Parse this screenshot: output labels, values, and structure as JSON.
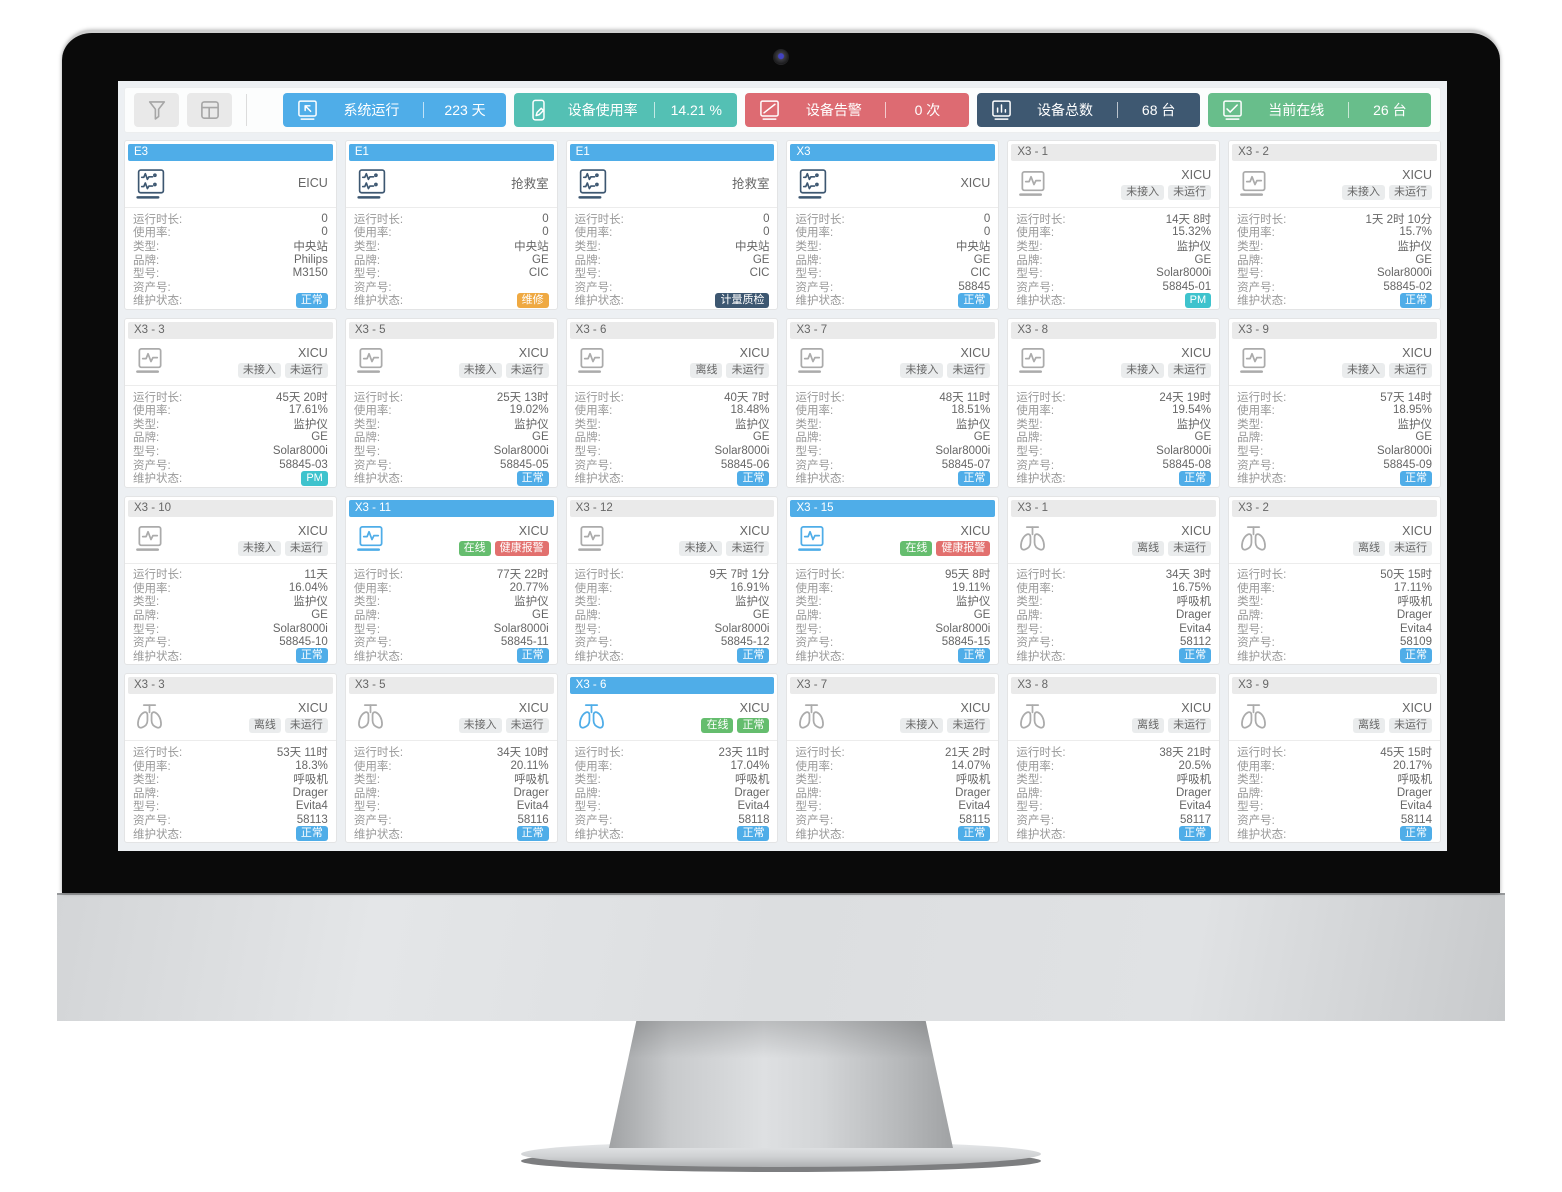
{
  "topbar": {
    "tools": [
      {
        "name": "filter",
        "icon": "funnel-icon"
      },
      {
        "name": "layout",
        "icon": "layout-icon"
      }
    ],
    "stats": [
      {
        "icon": "monitor-arrow-icon",
        "label": "系统运行",
        "value": "223 天",
        "color": "#4fade8"
      },
      {
        "icon": "tablet-pen-icon",
        "label": "设备使用率",
        "value": "14.21 %",
        "color": "#54c0b4"
      },
      {
        "icon": "monitor-slash-icon",
        "label": "设备告警",
        "value": "0 次",
        "color": "#dd6b72"
      },
      {
        "icon": "monitor-bars-icon",
        "label": "设备总数",
        "value": "68 台",
        "color": "#3e5871"
      },
      {
        "icon": "monitor-check-icon",
        "label": "当前在线",
        "value": "26 台",
        "color": "#68be8b"
      }
    ]
  },
  "colors": {
    "header_active_bg": "#4fade8",
    "header_active_fg": "#ffffff",
    "header_inactive_bg": "#eaeaea",
    "header_inactive_fg": "#666666",
    "badges": {
      "gray": {
        "bg": "#eaeced",
        "fg": "#666666"
      },
      "green": {
        "bg": "#65bd6e",
        "fg": "#ffffff"
      },
      "red": {
        "bg": "#e2706e",
        "fg": "#ffffff"
      },
      "blue": {
        "bg": "#4fade8",
        "fg": "#ffffff"
      },
      "teal": {
        "bg": "#3ec3cd",
        "fg": "#ffffff"
      },
      "orange": {
        "bg": "#efa942",
        "fg": "#ffffff"
      },
      "navy": {
        "bg": "#3d5771",
        "fg": "#ffffff"
      }
    },
    "device_icon": {
      "navy": "#3d5771",
      "gray": "#ababab",
      "blue": "#4fade8"
    }
  },
  "field_labels": {
    "runtime": "运行时长:",
    "usage": "使用率:",
    "type": "类型:",
    "brand": "品牌:",
    "model": "型号:",
    "asset": "资产号:",
    "maintenance": "维护状态:"
  },
  "cards": [
    {
      "title": "E3",
      "header_style": "blue",
      "icon": "central-station",
      "icon_color": "navy",
      "location": "EICU",
      "status_badges": [],
      "fields": {
        "runtime": "0",
        "usage": "0",
        "type": "中央站",
        "brand": "Philips",
        "model": "M3150",
        "asset": "",
        "maintenance": {
          "text": "正常",
          "type": "blue"
        }
      }
    },
    {
      "title": "E1",
      "header_style": "blue",
      "icon": "central-station",
      "icon_color": "navy",
      "location": "抢救室",
      "status_badges": [],
      "fields": {
        "runtime": "0",
        "usage": "0",
        "type": "中央站",
        "brand": "GE",
        "model": "CIC",
        "asset": "",
        "maintenance": {
          "text": "维修",
          "type": "orange"
        }
      }
    },
    {
      "title": "E1",
      "header_style": "blue",
      "icon": "central-station",
      "icon_color": "navy",
      "location": "抢救室",
      "status_badges": [],
      "fields": {
        "runtime": "0",
        "usage": "0",
        "type": "中央站",
        "brand": "GE",
        "model": "CIC",
        "asset": "",
        "maintenance": {
          "text": "计量质检",
          "type": "navy"
        }
      }
    },
    {
      "title": "X3",
      "header_style": "blue",
      "icon": "central-station",
      "icon_color": "navy",
      "location": "XICU",
      "status_badges": [],
      "fields": {
        "runtime": "0",
        "usage": "0",
        "type": "中央站",
        "brand": "GE",
        "model": "CIC",
        "asset": "58845",
        "maintenance": {
          "text": "正常",
          "type": "blue"
        }
      }
    },
    {
      "title": "X3 - 1",
      "header_style": "gray",
      "icon": "monitor",
      "icon_color": "gray",
      "location": "XICU",
      "status_badges": [
        {
          "text": "未接入",
          "type": "gray"
        },
        {
          "text": "未运行",
          "type": "gray"
        }
      ],
      "fields": {
        "runtime": "14天 8时",
        "usage": "15.32%",
        "type": "监护仪",
        "brand": "GE",
        "model": "Solar8000i",
        "asset": "58845-01",
        "maintenance": {
          "text": "PM",
          "type": "teal"
        }
      }
    },
    {
      "title": "X3 - 2",
      "header_style": "gray",
      "icon": "monitor",
      "icon_color": "gray",
      "location": "XICU",
      "status_badges": [
        {
          "text": "未接入",
          "type": "gray"
        },
        {
          "text": "未运行",
          "type": "gray"
        }
      ],
      "fields": {
        "runtime": "1天 2时 10分",
        "usage": "15.7%",
        "type": "监护仪",
        "brand": "GE",
        "model": "Solar8000i",
        "asset": "58845-02",
        "maintenance": {
          "text": "正常",
          "type": "blue"
        }
      }
    },
    {
      "title": "X3 - 3",
      "header_style": "gray",
      "icon": "monitor",
      "icon_color": "gray",
      "location": "XICU",
      "status_badges": [
        {
          "text": "未接入",
          "type": "gray"
        },
        {
          "text": "未运行",
          "type": "gray"
        }
      ],
      "fields": {
        "runtime": "45天 20时",
        "usage": "17.61%",
        "type": "监护仪",
        "brand": "GE",
        "model": "Solar8000i",
        "asset": "58845-03",
        "maintenance": {
          "text": "PM",
          "type": "teal"
        }
      }
    },
    {
      "title": "X3 - 5",
      "header_style": "gray",
      "icon": "monitor",
      "icon_color": "gray",
      "location": "XICU",
      "status_badges": [
        {
          "text": "未接入",
          "type": "gray"
        },
        {
          "text": "未运行",
          "type": "gray"
        }
      ],
      "fields": {
        "runtime": "25天 13时",
        "usage": "19.02%",
        "type": "监护仪",
        "brand": "GE",
        "model": "Solar8000i",
        "asset": "58845-05",
        "maintenance": {
          "text": "正常",
          "type": "blue"
        }
      }
    },
    {
      "title": "X3 - 6",
      "header_style": "gray",
      "icon": "monitor",
      "icon_color": "gray",
      "location": "XICU",
      "status_badges": [
        {
          "text": "离线",
          "type": "gray"
        },
        {
          "text": "未运行",
          "type": "gray"
        }
      ],
      "fields": {
        "runtime": "40天 7时",
        "usage": "18.48%",
        "type": "监护仪",
        "brand": "GE",
        "model": "Solar8000i",
        "asset": "58845-06",
        "maintenance": {
          "text": "正常",
          "type": "blue"
        }
      }
    },
    {
      "title": "X3 - 7",
      "header_style": "gray",
      "icon": "monitor",
      "icon_color": "gray",
      "location": "XICU",
      "status_badges": [
        {
          "text": "未接入",
          "type": "gray"
        },
        {
          "text": "未运行",
          "type": "gray"
        }
      ],
      "fields": {
        "runtime": "48天 11时",
        "usage": "18.51%",
        "type": "监护仪",
        "brand": "GE",
        "model": "Solar8000i",
        "asset": "58845-07",
        "maintenance": {
          "text": "正常",
          "type": "blue"
        }
      }
    },
    {
      "title": "X3 - 8",
      "header_style": "gray",
      "icon": "monitor",
      "icon_color": "gray",
      "location": "XICU",
      "status_badges": [
        {
          "text": "未接入",
          "type": "gray"
        },
        {
          "text": "未运行",
          "type": "gray"
        }
      ],
      "fields": {
        "runtime": "24天 19时",
        "usage": "19.54%",
        "type": "监护仪",
        "brand": "GE",
        "model": "Solar8000i",
        "asset": "58845-08",
        "maintenance": {
          "text": "正常",
          "type": "blue"
        }
      }
    },
    {
      "title": "X3 - 9",
      "header_style": "gray",
      "icon": "monitor",
      "icon_color": "gray",
      "location": "XICU",
      "status_badges": [
        {
          "text": "未接入",
          "type": "gray"
        },
        {
          "text": "未运行",
          "type": "gray"
        }
      ],
      "fields": {
        "runtime": "57天 14时",
        "usage": "18.95%",
        "type": "监护仪",
        "brand": "GE",
        "model": "Solar8000i",
        "asset": "58845-09",
        "maintenance": {
          "text": "正常",
          "type": "blue"
        }
      }
    },
    {
      "title": "X3 - 10",
      "header_style": "gray",
      "icon": "monitor",
      "icon_color": "gray",
      "location": "XICU",
      "status_badges": [
        {
          "text": "未接入",
          "type": "gray"
        },
        {
          "text": "未运行",
          "type": "gray"
        }
      ],
      "fields": {
        "runtime": "11天",
        "usage": "16.04%",
        "type": "监护仪",
        "brand": "GE",
        "model": "Solar8000i",
        "asset": "58845-10",
        "maintenance": {
          "text": "正常",
          "type": "blue"
        }
      }
    },
    {
      "title": "X3 - 11",
      "header_style": "blue",
      "icon": "monitor",
      "icon_color": "blue",
      "location": "XICU",
      "status_badges": [
        {
          "text": "在线",
          "type": "green"
        },
        {
          "text": "健康报警",
          "type": "red"
        }
      ],
      "fields": {
        "runtime": "77天 22时",
        "usage": "20.77%",
        "type": "监护仪",
        "brand": "GE",
        "model": "Solar8000i",
        "asset": "58845-11",
        "maintenance": {
          "text": "正常",
          "type": "blue"
        }
      }
    },
    {
      "title": "X3 - 12",
      "header_style": "gray",
      "icon": "monitor",
      "icon_color": "gray",
      "location": "XICU",
      "status_badges": [
        {
          "text": "未接入",
          "type": "gray"
        },
        {
          "text": "未运行",
          "type": "gray"
        }
      ],
      "fields": {
        "runtime": "9天 7时 1分",
        "usage": "16.91%",
        "type": "监护仪",
        "brand": "GE",
        "model": "Solar8000i",
        "asset": "58845-12",
        "maintenance": {
          "text": "正常",
          "type": "blue"
        }
      }
    },
    {
      "title": "X3 - 15",
      "header_style": "blue",
      "icon": "monitor",
      "icon_color": "blue",
      "location": "XICU",
      "status_badges": [
        {
          "text": "在线",
          "type": "green"
        },
        {
          "text": "健康报警",
          "type": "red"
        }
      ],
      "fields": {
        "runtime": "95天 8时",
        "usage": "19.11%",
        "type": "监护仪",
        "brand": "GE",
        "model": "Solar8000i",
        "asset": "58845-15",
        "maintenance": {
          "text": "正常",
          "type": "blue"
        }
      }
    },
    {
      "title": "X3 - 1",
      "header_style": "gray",
      "icon": "ventilator",
      "icon_color": "gray",
      "location": "XICU",
      "status_badges": [
        {
          "text": "离线",
          "type": "gray"
        },
        {
          "text": "未运行",
          "type": "gray"
        }
      ],
      "fields": {
        "runtime": "34天 3时",
        "usage": "16.75%",
        "type": "呼吸机",
        "brand": "Drager",
        "model": "Evita4",
        "asset": "58112",
        "maintenance": {
          "text": "正常",
          "type": "blue"
        }
      }
    },
    {
      "title": "X3 - 2",
      "header_style": "gray",
      "icon": "ventilator",
      "icon_color": "gray",
      "location": "XICU",
      "status_badges": [
        {
          "text": "离线",
          "type": "gray"
        },
        {
          "text": "未运行",
          "type": "gray"
        }
      ],
      "fields": {
        "runtime": "50天 15时",
        "usage": "17.11%",
        "type": "呼吸机",
        "brand": "Drager",
        "model": "Evita4",
        "asset": "58109",
        "maintenance": {
          "text": "正常",
          "type": "blue"
        }
      }
    },
    {
      "title": "X3 - 3",
      "header_style": "gray",
      "icon": "ventilator",
      "icon_color": "gray",
      "location": "XICU",
      "status_badges": [
        {
          "text": "离线",
          "type": "gray"
        },
        {
          "text": "未运行",
          "type": "gray"
        }
      ],
      "fields": {
        "runtime": "53天 11时",
        "usage": "18.3%",
        "type": "呼吸机",
        "brand": "Drager",
        "model": "Evita4",
        "asset": "58113",
        "maintenance": {
          "text": "正常",
          "type": "blue"
        }
      }
    },
    {
      "title": "X3 - 5",
      "header_style": "gray",
      "icon": "ventilator",
      "icon_color": "gray",
      "location": "XICU",
      "status_badges": [
        {
          "text": "未接入",
          "type": "gray"
        },
        {
          "text": "未运行",
          "type": "gray"
        }
      ],
      "fields": {
        "runtime": "34天 10时",
        "usage": "20.11%",
        "type": "呼吸机",
        "brand": "Drager",
        "model": "Evita4",
        "asset": "58116",
        "maintenance": {
          "text": "正常",
          "type": "blue"
        }
      }
    },
    {
      "title": "X3 - 6",
      "header_style": "blue",
      "icon": "ventilator",
      "icon_color": "blue",
      "location": "XICU",
      "status_badges": [
        {
          "text": "在线",
          "type": "green"
        },
        {
          "text": "正常",
          "type": "green"
        }
      ],
      "fields": {
        "runtime": "23天 11时",
        "usage": "17.04%",
        "type": "呼吸机",
        "brand": "Drager",
        "model": "Evita4",
        "asset": "58118",
        "maintenance": {
          "text": "正常",
          "type": "blue"
        }
      }
    },
    {
      "title": "X3 - 7",
      "header_style": "gray",
      "icon": "ventilator",
      "icon_color": "gray",
      "location": "XICU",
      "status_badges": [
        {
          "text": "未接入",
          "type": "gray"
        },
        {
          "text": "未运行",
          "type": "gray"
        }
      ],
      "fields": {
        "runtime": "21天 2时",
        "usage": "14.07%",
        "type": "呼吸机",
        "brand": "Drager",
        "model": "Evita4",
        "asset": "58115",
        "maintenance": {
          "text": "正常",
          "type": "blue"
        }
      }
    },
    {
      "title": "X3 - 8",
      "header_style": "gray",
      "icon": "ventilator",
      "icon_color": "gray",
      "location": "XICU",
      "status_badges": [
        {
          "text": "离线",
          "type": "gray"
        },
        {
          "text": "未运行",
          "type": "gray"
        }
      ],
      "fields": {
        "runtime": "38天 21时",
        "usage": "20.5%",
        "type": "呼吸机",
        "brand": "Drager",
        "model": "Evita4",
        "asset": "58117",
        "maintenance": {
          "text": "正常",
          "type": "blue"
        }
      }
    },
    {
      "title": "X3 - 9",
      "header_style": "gray",
      "icon": "ventilator",
      "icon_color": "gray",
      "location": "XICU",
      "status_badges": [
        {
          "text": "离线",
          "type": "gray"
        },
        {
          "text": "未运行",
          "type": "gray"
        }
      ],
      "fields": {
        "runtime": "45天 15时",
        "usage": "20.17%",
        "type": "呼吸机",
        "brand": "Drager",
        "model": "Evita4",
        "asset": "58114",
        "maintenance": {
          "text": "正常",
          "type": "blue"
        }
      }
    }
  ]
}
